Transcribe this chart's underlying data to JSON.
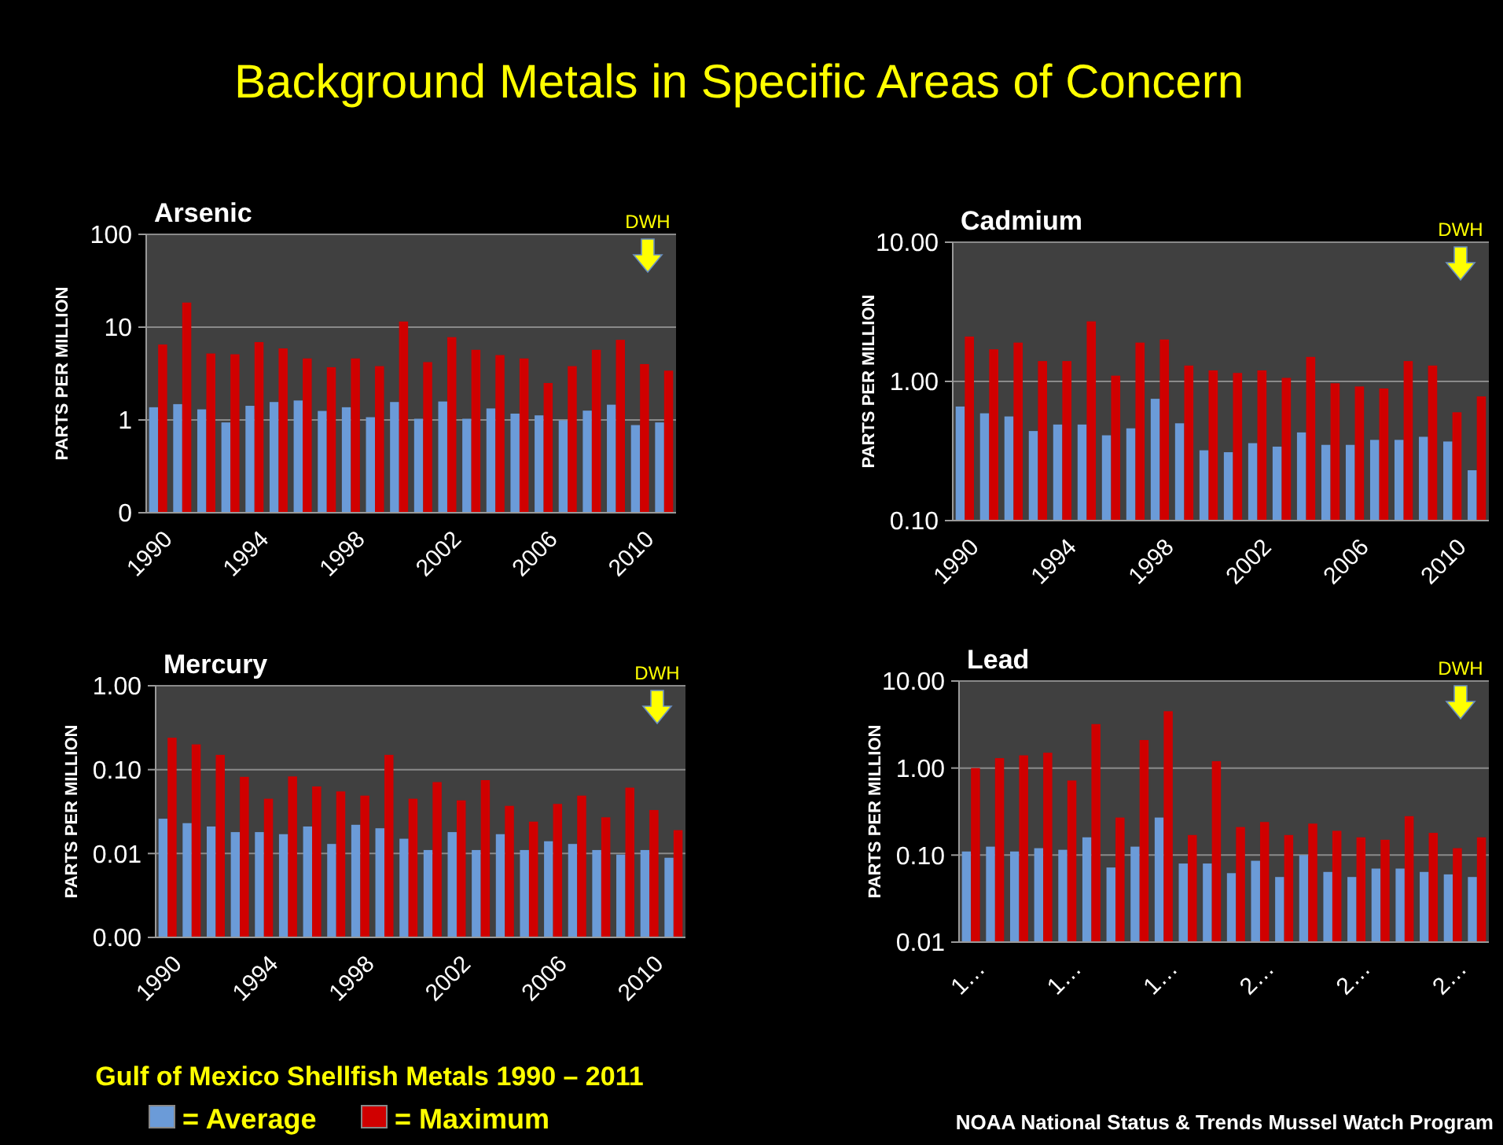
{
  "chart_data": [
    {
      "type": "bar",
      "title": "Arsenic",
      "ylabel": "PARTS PER MILLION",
      "log": true,
      "grid": "y",
      "ylim": [
        0.1,
        100
      ],
      "yticks": [
        {
          "value": 0.1,
          "label": "0"
        },
        1,
        10,
        100
      ],
      "annotations": [
        "DWH"
      ],
      "categories": [
        "1990",
        null,
        null,
        null,
        "1994",
        null,
        null,
        null,
        "1998",
        null,
        null,
        null,
        "2002",
        null,
        null,
        null,
        "2006",
        null,
        null,
        null,
        "2010",
        null
      ],
      "series": [
        {
          "color": "#6b9bd8",
          "values": [
            1.37,
            1.48,
            1.3,
            0.94,
            1.42,
            1.56,
            1.62,
            1.25,
            1.37,
            1.07,
            1.56,
            1.03,
            1.58,
            1.03,
            1.33,
            1.17,
            1.12,
            0.99,
            1.26,
            1.46,
            0.88,
            0.94
          ]
        },
        {
          "color": "#d00000",
          "values": [
            6.5,
            18.4,
            5.2,
            5.1,
            6.9,
            5.9,
            4.6,
            3.7,
            4.6,
            3.8,
            11.5,
            4.2,
            7.8,
            5.7,
            5.0,
            4.6,
            2.5,
            3.8,
            5.7,
            7.3,
            4.0,
            3.4
          ]
        }
      ]
    },
    {
      "type": "bar",
      "title": "Cadmium",
      "ylabel": "PARTS PER MILLION",
      "log": true,
      "grid": "y",
      "ylim": [
        0.1,
        10
      ],
      "yticks": [
        {
          "value": 0.1,
          "label": "0.10"
        },
        {
          "value": 1,
          "label": "1.00"
        },
        {
          "value": 10,
          "label": "10.00"
        }
      ],
      "annotations": [
        "DWH"
      ],
      "categories": [
        "1990",
        null,
        null,
        null,
        "1994",
        null,
        null,
        null,
        "1998",
        null,
        null,
        null,
        "2002",
        null,
        null,
        null,
        "2006",
        null,
        null,
        null,
        "2010",
        null
      ],
      "series": [
        {
          "color": "#6b9bd8",
          "values": [
            0.66,
            0.59,
            0.56,
            0.44,
            0.49,
            0.49,
            0.41,
            0.46,
            0.75,
            0.5,
            0.32,
            0.31,
            0.36,
            0.34,
            0.43,
            0.35,
            0.35,
            0.38,
            0.38,
            0.4,
            0.37,
            0.23
          ]
        },
        {
          "color": "#d00000",
          "values": [
            2.1,
            1.7,
            1.9,
            1.4,
            1.4,
            2.7,
            1.1,
            1.9,
            2.0,
            1.3,
            1.2,
            1.15,
            1.2,
            1.06,
            1.5,
            0.97,
            0.92,
            0.89,
            1.4,
            1.3,
            0.6,
            0.78
          ]
        }
      ]
    },
    {
      "type": "bar",
      "title": "Mercury",
      "ylabel": "PARTS PER MILLION",
      "log": true,
      "grid": "y",
      "legend": "bottom",
      "ylim": [
        0.001,
        1
      ],
      "yticks": [
        {
          "value": 0.001,
          "label": "0.00"
        },
        {
          "value": 0.01,
          "label": "0.01"
        },
        {
          "value": 0.1,
          "label": "0.10"
        },
        {
          "value": 1,
          "label": "1.00"
        }
      ],
      "annotations": [
        "DWH"
      ],
      "categories": [
        "1990",
        null,
        null,
        null,
        "1994",
        null,
        null,
        null,
        "1998",
        null,
        null,
        null,
        "2002",
        null,
        null,
        null,
        "2006",
        null,
        null,
        null,
        "2010",
        null
      ],
      "series": [
        {
          "name": "= Average",
          "color": "#6b9bd8",
          "values": [
            0.026,
            0.023,
            0.021,
            0.018,
            0.018,
            0.017,
            0.021,
            0.013,
            0.022,
            0.02,
            0.015,
            0.011,
            0.018,
            0.011,
            0.017,
            0.011,
            0.014,
            0.013,
            0.011,
            0.0097,
            0.011,
            0.0089
          ]
        },
        {
          "name": "= Maximum",
          "color": "#d00000",
          "values": [
            0.24,
            0.2,
            0.15,
            0.082,
            0.045,
            0.083,
            0.063,
            0.055,
            0.049,
            0.15,
            0.045,
            0.071,
            0.043,
            0.075,
            0.037,
            0.024,
            0.039,
            0.049,
            0.027,
            0.061,
            0.033,
            0.019
          ]
        }
      ]
    },
    {
      "type": "bar",
      "title": "Lead",
      "ylabel": "PARTS PER MILLION",
      "log": true,
      "grid": "y",
      "ylim": [
        0.01,
        10
      ],
      "yticks": [
        {
          "value": 0.01,
          "label": "0.01"
        },
        {
          "value": 0.1,
          "label": "0.10"
        },
        {
          "value": 1,
          "label": "1.00"
        },
        {
          "value": 10,
          "label": "10.00"
        }
      ],
      "annotations": [
        "DWH"
      ],
      "categories": [
        "1…",
        null,
        null,
        null,
        "1…",
        null,
        null,
        null,
        "1…",
        null,
        null,
        null,
        "2…",
        null,
        null,
        null,
        "2…",
        null,
        null,
        null,
        "2…",
        null
      ],
      "series": [
        {
          "color": "#6b9bd8",
          "values": [
            0.11,
            0.125,
            0.11,
            0.12,
            0.115,
            0.16,
            0.072,
            0.125,
            0.27,
            0.08,
            0.08,
            0.062,
            0.086,
            0.056,
            0.1,
            0.064,
            0.056,
            0.07,
            0.07,
            0.064,
            0.06,
            0.056
          ]
        },
        {
          "color": "#d00000",
          "values": [
            1.0,
            1.3,
            1.4,
            1.5,
            0.72,
            3.2,
            0.27,
            2.1,
            4.5,
            0.17,
            1.2,
            0.21,
            0.24,
            0.17,
            0.23,
            0.19,
            0.16,
            0.15,
            0.28,
            0.18,
            0.12,
            0.16
          ]
        }
      ]
    },
    {
      "type": "other",
      "title": "Background Metals in Specific Areas of Concern",
      "annotations": [
        "Gulf of Mexico Shellfish Metals 1990 – 2011",
        "NOAA National Status & Trends Mussel Watch Program"
      ]
    }
  ]
}
